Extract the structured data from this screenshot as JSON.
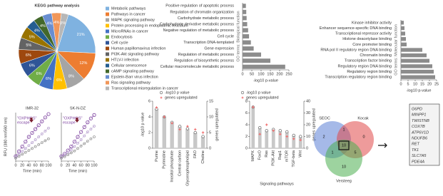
{
  "chart_data": [
    {
      "type": "pie",
      "title": "KEGG pathway analysis",
      "categories": [
        "Metabolic pathways",
        "Pathways in cancer",
        "MAPK signaling pathway",
        "Protein processing in endoplasmic reticulum",
        "MicroRNAs in cancer",
        "Endocytosis",
        "Cell cycle",
        "Human papillomavirus infection",
        "PI3K-Akt signaling pathway",
        "HTLV-I infection",
        "Cellular senescence",
        "cAMP signaling pathway",
        "Epstein-Barr virus infection",
        "Ras signaling pathway",
        "Transcriptional misregulation in cancer"
      ],
      "values": [
        21,
        12,
        8,
        6,
        6,
        6,
        6,
        6,
        5,
        5,
        4,
        4,
        4,
        4,
        3
      ],
      "value_labels": [
        "21%",
        "12%",
        "8%",
        "6%",
        "6%",
        "6%",
        "6%",
        "6%",
        "5%",
        "5%",
        "4%",
        "4%",
        "4%",
        "4%",
        "3%"
      ],
      "colors": [
        "#7fb2e0",
        "#ed7d31",
        "#a5a5a5",
        "#ffc000",
        "#4472c4",
        "#70ad47",
        "#2f5597",
        "#9e480e",
        "#636363",
        "#997300",
        "#255e91",
        "#43682b",
        "#698ed0",
        "#f1975a",
        "#b7b7b7"
      ]
    },
    {
      "type": "barh",
      "ylabel": "GO terms: Biological function",
      "xlabel": "-log10 p-value",
      "categories": [
        "Positive regulation of apoptotic process",
        "Regulation of chromatin organization",
        "Carbohydrate metabolic process",
        "Carbohydrate derivative metabolic process",
        "Negative regulation of metabolic process",
        "Cell cycle",
        "Transcription DNA-templated",
        "Gene expression",
        "Regulation of metabolic process",
        "Regulation of biosynthetic process",
        "Cellular macromolecule metabolic process"
      ],
      "values": [
        18,
        20,
        22,
        25,
        30,
        35,
        45,
        60,
        100,
        150,
        230
      ],
      "xlim": [
        0,
        250
      ],
      "xticks": [
        0,
        50,
        100,
        150,
        200,
        250
      ],
      "color": "#8c8c8c"
    },
    {
      "type": "barh",
      "ylabel": "GO terms: Molecular function",
      "xlabel": "-log10 p-value",
      "categories": [
        "Kinase inhibitor activity",
        "Enhancer sequence-specific DNA binding",
        "Transcriptional repressor activity",
        "Histone deacetylase binding",
        "Core promoter binding",
        "RNA pol II regulatory region DNA binding",
        "Chromatin binding",
        "Transcription factor binding",
        "Regulatory region DNA binding",
        "Regulatory region binding",
        "Transcription regulatory region binding"
      ],
      "values": [
        2,
        2.5,
        3,
        3.5,
        4,
        15,
        18,
        20,
        22,
        23,
        24
      ],
      "xlim": [
        0,
        25
      ],
      "xticks": [
        0,
        5,
        10,
        15,
        20,
        25
      ],
      "color": "#8c8c8c"
    },
    {
      "type": "line",
      "title": "IMR-32",
      "xlabel": "Time (min)",
      "ylabel": "RFU (380 nm/560 nm)",
      "annotation": [
        "\"OXPHOS\"",
        "escape"
      ],
      "x": [
        0,
        10,
        20,
        30,
        40,
        50,
        60,
        70,
        80,
        90,
        100
      ],
      "series": [
        {
          "color": "#7b3f9e",
          "values": [
            0.1,
            0.2,
            0.3,
            0.4,
            0.5,
            0.58,
            0.66,
            0.74,
            0.82,
            0.9,
            0.97
          ]
        },
        {
          "color": "#b9a3d0",
          "values": [
            0.08,
            0.14,
            0.2,
            0.26,
            0.32,
            0.38,
            0.44,
            0.5,
            0.56,
            0.62,
            0.68
          ]
        },
        {
          "color": "#9a9a9a",
          "values": [
            0.06,
            0.1,
            0.14,
            0.18,
            0.22,
            0.26,
            0.3,
            0.34,
            0.38,
            0.42,
            0.46
          ]
        }
      ],
      "xlim": [
        0,
        100
      ],
      "xticks": [
        0,
        20,
        40,
        60,
        80,
        100
      ],
      "ylim": [
        0,
        1
      ]
    },
    {
      "type": "line",
      "title": "SK-N-DZ",
      "xlabel": "Time (min)",
      "annotation": [
        "\"OXPHOS\"",
        "escape"
      ],
      "x": [
        0,
        10,
        20,
        30,
        40,
        50,
        60,
        70,
        80,
        90,
        100
      ],
      "series": [
        {
          "color": "#7b3f9e",
          "values": [
            0.1,
            0.15,
            0.22,
            0.3,
            0.4,
            0.5,
            0.6,
            0.7,
            0.8,
            0.88,
            0.95
          ]
        },
        {
          "color": "#b9a3d0",
          "values": [
            0.08,
            0.12,
            0.17,
            0.23,
            0.3,
            0.37,
            0.44,
            0.52,
            0.6,
            0.66,
            0.72
          ]
        },
        {
          "color": "#9a9a9a",
          "values": [
            0.06,
            0.09,
            0.13,
            0.17,
            0.21,
            0.26,
            0.31,
            0.36,
            0.41,
            0.46,
            0.5
          ]
        }
      ],
      "xlim": [
        0,
        100
      ],
      "xticks": [
        0,
        20,
        40,
        60,
        80,
        100
      ],
      "ylim": [
        0,
        1
      ]
    },
    {
      "type": "bar",
      "ylabel": "-log10 p value",
      "y2label": "genes upregulated",
      "categories": [
        "Purine",
        "Pyrimidine",
        "Inositol phosphate",
        "Central carbon",
        "Glycerophospholipid",
        "FAO",
        "Choline"
      ],
      "series": [
        {
          "name": "-log10 p value",
          "color": "#c8c8c8",
          "values": [
            5,
            4,
            3.3,
            2.8,
            2.5,
            2,
            1.5
          ]
        },
        {
          "name": "genes upregulated",
          "color": "#f07070",
          "axis": "y2",
          "values": [
            13,
            10,
            8,
            6,
            7,
            6,
            5
          ]
        }
      ],
      "ylim": [
        0,
        6
      ],
      "yticks": [
        0,
        2,
        4,
        6
      ],
      "y2lim": [
        0,
        15
      ],
      "y2ticks": [
        0,
        5,
        10,
        15
      ]
    },
    {
      "type": "bar",
      "xlabel": "Signaling pathways",
      "y2label": "genes upregulated",
      "categories": [
        "MAPK",
        "FoxO",
        "Ras",
        "PI3K-Akt",
        "Rap1",
        "mTOR",
        "TGF-beta",
        "Wnt"
      ],
      "series": [
        {
          "name": "-log10 p value",
          "color": "#c8c8c8",
          "values": [
            7,
            3.5,
            3,
            3.2,
            3,
            2.8,
            2.2,
            2
          ]
        },
        {
          "name": "genes upregulated",
          "color": "#f07070",
          "axis": "y2",
          "values": [
            35,
            12,
            20,
            15,
            12,
            10,
            8,
            7
          ]
        }
      ],
      "ylim": [
        0,
        8
      ],
      "yticks": [
        0,
        2,
        4,
        6,
        8
      ],
      "y2lim": [
        0,
        40
      ],
      "y2ticks": [
        0,
        10,
        20,
        30,
        40
      ]
    }
  ],
  "venn": {
    "sets": [
      "SEOC",
      "Kocak",
      "Versteeg"
    ],
    "regions": {
      "seoc": 2,
      "seoc_kocak": 1,
      "kocak": 0,
      "all": 10,
      "kocak_versteeg": 5,
      "seoc_versteeg": 1,
      "versteeg": 10
    }
  },
  "gene_list": [
    "G6PD",
    "MINPP1",
    "TWISTNB",
    "COX7B",
    "ATP6V1D",
    "NDUFB6",
    "RET",
    "TK1",
    "SLC7A5",
    "PDE4A"
  ]
}
